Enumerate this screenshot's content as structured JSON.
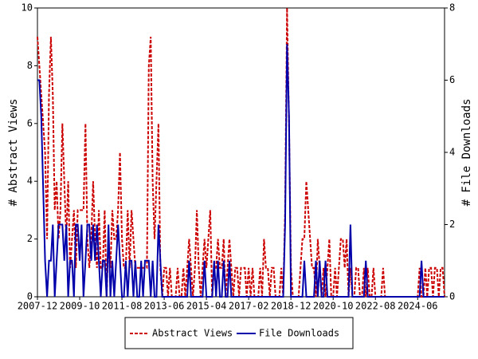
{
  "chart_data": {
    "type": "line",
    "y_label": "# Abstract Views",
    "y2_label": "# File Downloads",
    "categories": [
      "2007-12",
      null,
      null,
      null,
      null,
      null,
      null,
      null,
      null,
      null,
      null,
      null,
      null,
      null,
      null,
      null,
      null,
      null,
      null,
      null,
      null,
      null,
      "2009-10",
      null,
      null,
      null,
      null,
      null,
      null,
      null,
      null,
      null,
      null,
      null,
      null,
      null,
      null,
      null,
      null,
      null,
      null,
      null,
      null,
      null,
      "2011-08",
      null,
      null,
      null,
      null,
      null,
      null,
      null,
      null,
      null,
      null,
      null,
      null,
      null,
      null,
      null,
      null,
      null,
      null,
      null,
      null,
      null,
      "2013-06",
      null,
      null,
      null,
      null,
      null,
      null,
      null,
      null,
      null,
      null,
      null,
      null,
      null,
      null,
      null,
      null,
      null,
      null,
      null,
      null,
      null,
      "2015-04",
      null,
      null,
      null,
      null,
      null,
      null,
      null,
      null,
      null,
      null,
      null,
      null,
      null,
      null,
      null,
      null,
      null,
      null,
      null,
      null,
      null,
      "2017-02",
      null,
      null,
      null,
      null,
      null,
      null,
      null,
      null,
      null,
      null,
      null,
      null,
      null,
      null,
      null,
      null,
      null,
      null,
      null,
      null,
      null,
      "2018-12",
      null,
      null,
      null,
      null,
      null,
      null,
      null,
      null,
      null,
      null,
      null,
      null,
      null,
      null,
      null,
      null,
      null,
      null,
      null,
      null,
      null,
      "2020-10",
      null,
      null,
      null,
      null,
      null,
      null,
      null,
      null,
      null,
      null,
      null,
      null,
      null,
      null,
      null,
      null,
      null,
      null,
      null,
      null,
      null,
      "2022-08",
      null,
      null,
      null,
      null,
      null,
      null,
      null,
      null,
      null,
      null,
      null,
      null,
      null,
      null,
      null,
      null,
      null,
      null,
      null,
      null,
      null,
      "2024-06",
      null,
      null,
      null,
      null,
      null,
      null,
      null,
      null,
      null,
      null,
      null,
      null,
      null,
      null
    ],
    "series": [
      {
        "name": "Abstract Views",
        "color": "#cc0000",
        "dash": true,
        "values": [
          9,
          8,
          7,
          6,
          5,
          2,
          7,
          9,
          7,
          3,
          4,
          2,
          3,
          6,
          4,
          2,
          4,
          1,
          2,
          3,
          1,
          3,
          3,
          3,
          3,
          6,
          2,
          1,
          2,
          4,
          2,
          1,
          3,
          1,
          1,
          3,
          0,
          2,
          1,
          3,
          2,
          2,
          3,
          5,
          2,
          1,
          1,
          3,
          1,
          3,
          2,
          1,
          1,
          1,
          1,
          1,
          1,
          1,
          8,
          9,
          4,
          2,
          4,
          6,
          1,
          0,
          1,
          1,
          0,
          1,
          0,
          0,
          0,
          1,
          0,
          0,
          1,
          0,
          1,
          2,
          1,
          0,
          1,
          3,
          1,
          0,
          1,
          2,
          1,
          2,
          3,
          0,
          1,
          1,
          2,
          1,
          1,
          2,
          0,
          1,
          2,
          1,
          0,
          1,
          1,
          0,
          1,
          1,
          1,
          0,
          1,
          0,
          1,
          0,
          0,
          0,
          1,
          0,
          2,
          1,
          1,
          0,
          1,
          1,
          0,
          0,
          0,
          1,
          0,
          3,
          10,
          6,
          1,
          0,
          0,
          0,
          0,
          1,
          2,
          2,
          4,
          3,
          2,
          1,
          1,
          0,
          2,
          1,
          0,
          1,
          0,
          1,
          2,
          0,
          0,
          1,
          0,
          1,
          2,
          2,
          1,
          2,
          0,
          1,
          0,
          0,
          1,
          1,
          0,
          0,
          1,
          0,
          1,
          0,
          0,
          1,
          0,
          0,
          0,
          0,
          1,
          0,
          0,
          0,
          0,
          0,
          0,
          0,
          0,
          0,
          0,
          0,
          0,
          0,
          0,
          0,
          0,
          0,
          0,
          1,
          0,
          0,
          1,
          0,
          1,
          1,
          0,
          1,
          1,
          0,
          1,
          1,
          0
        ]
      },
      {
        "name": "File Downloads",
        "color": "#0000aa",
        "axis": "y2",
        "values": [
          6,
          6,
          5,
          3,
          1,
          0,
          1,
          1,
          2,
          0,
          1,
          2,
          2,
          2,
          1,
          2,
          0,
          1,
          1,
          0,
          2,
          2,
          1,
          2,
          0,
          1,
          2,
          2,
          1,
          2,
          1,
          2,
          1,
          0,
          1,
          1,
          0,
          2,
          0,
          1,
          0,
          1,
          2,
          1,
          0,
          0,
          1,
          0,
          1,
          1,
          0,
          1,
          0,
          0,
          1,
          0,
          1,
          1,
          1,
          0,
          1,
          0,
          0,
          2,
          1,
          0,
          0,
          0,
          0,
          0,
          0,
          0,
          0,
          0,
          0,
          0,
          0,
          0,
          0,
          1,
          0,
          0,
          0,
          0,
          0,
          0,
          0,
          1,
          0,
          0,
          0,
          0,
          1,
          0,
          1,
          0,
          0,
          1,
          0,
          0,
          1,
          0,
          0,
          0,
          0,
          0,
          0,
          0,
          0,
          0,
          0,
          0,
          0,
          0,
          0,
          0,
          0,
          0,
          0,
          0,
          0,
          0,
          0,
          0,
          0,
          0,
          0,
          0,
          0,
          2,
          7,
          5,
          0,
          0,
          0,
          0,
          0,
          0,
          0,
          1,
          0,
          0,
          0,
          0,
          0,
          1,
          0,
          1,
          0,
          0,
          1,
          0,
          0,
          0,
          0,
          0,
          0,
          0,
          0,
          0,
          0,
          0,
          0,
          2,
          0,
          0,
          0,
          0,
          0,
          0,
          0,
          1,
          0,
          0,
          0,
          0,
          0,
          0,
          0,
          0,
          0,
          0,
          0,
          0,
          0,
          0,
          0,
          0,
          0,
          0,
          0,
          0,
          0,
          0,
          0,
          0,
          0,
          0,
          0,
          0,
          1,
          0,
          0,
          0,
          0,
          0,
          0,
          0,
          0,
          0,
          0,
          0,
          0
        ]
      }
    ],
    "ylim": [
      0,
      10
    ],
    "yticks": [
      0,
      2,
      4,
      6,
      8,
      10
    ],
    "y2lim": [
      0,
      8
    ],
    "y2ticks": [
      0,
      2,
      4,
      6,
      8
    ],
    "legend": "bottom"
  }
}
